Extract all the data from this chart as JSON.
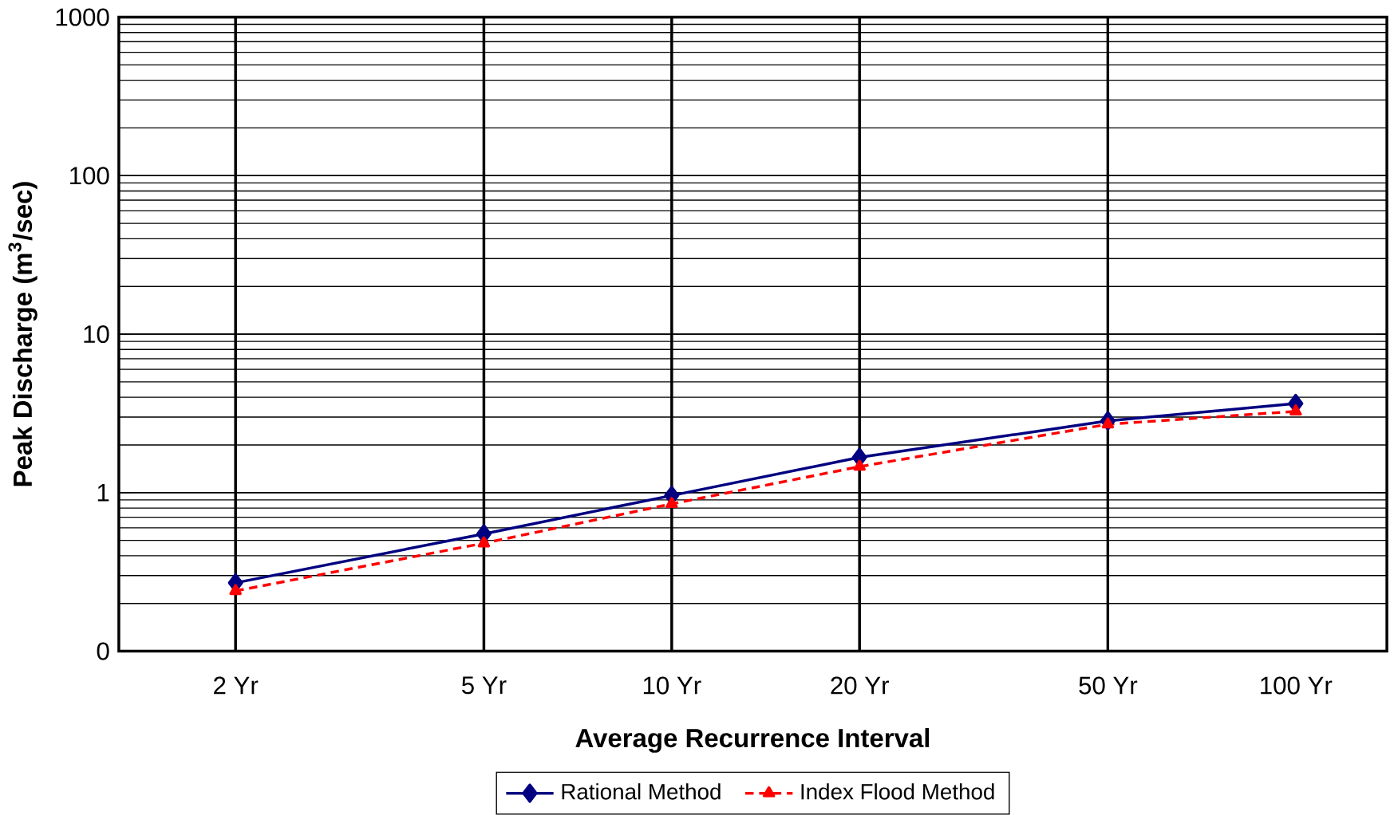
{
  "chart_data": {
    "type": "line",
    "xlabel": "Average Recurrence Interval",
    "ylabel": "Peak Discharge (m$^{3}$/sec)",
    "xlim": [
      1.3,
      140
    ],
    "xticks": [
      {
        "value": 2,
        "label": "2 Yr"
      },
      {
        "value": 5,
        "label": "5 Yr"
      },
      {
        "value": 10,
        "label": "10 Yr"
      },
      {
        "value": 20,
        "label": "20 Yr"
      },
      {
        "value": 50,
        "label": "50 Yr"
      },
      {
        "value": 100,
        "label": "100 Yr"
      }
    ],
    "ylim": [
      0.1,
      1000
    ],
    "log": "xy",
    "yticks": [
      {
        "value": 0.1,
        "label": "0"
      },
      1,
      10,
      100,
      1000
    ],
    "grid": "y",
    "legend": "bottom",
    "ref_lines": [
      {
        "axis": "x",
        "value": 2,
        "color": "#000000"
      },
      {
        "axis": "x",
        "value": 5,
        "color": "#000000"
      },
      {
        "axis": "x",
        "value": 10,
        "color": "#000000"
      },
      {
        "axis": "x",
        "value": 20,
        "color": "#000000"
      },
      {
        "axis": "x",
        "value": 50,
        "color": "#000000"
      }
    ],
    "series": [
      {
        "name": "Rational Method",
        "color": "#000080",
        "marker": "diamond",
        "line_style": "solid",
        "x": [
          2,
          5,
          10,
          20,
          50,
          100
        ],
        "values": [
          0.27,
          0.55,
          0.96,
          1.67,
          2.84,
          3.65
        ]
      },
      {
        "name": "Index Flood Method",
        "color": "#ff0000",
        "marker": "triangle",
        "line_style": "dashed",
        "x": [
          2,
          5,
          10,
          20,
          50,
          100
        ],
        "values": [
          0.24,
          0.48,
          0.85,
          1.46,
          2.7,
          3.26
        ]
      }
    ]
  }
}
